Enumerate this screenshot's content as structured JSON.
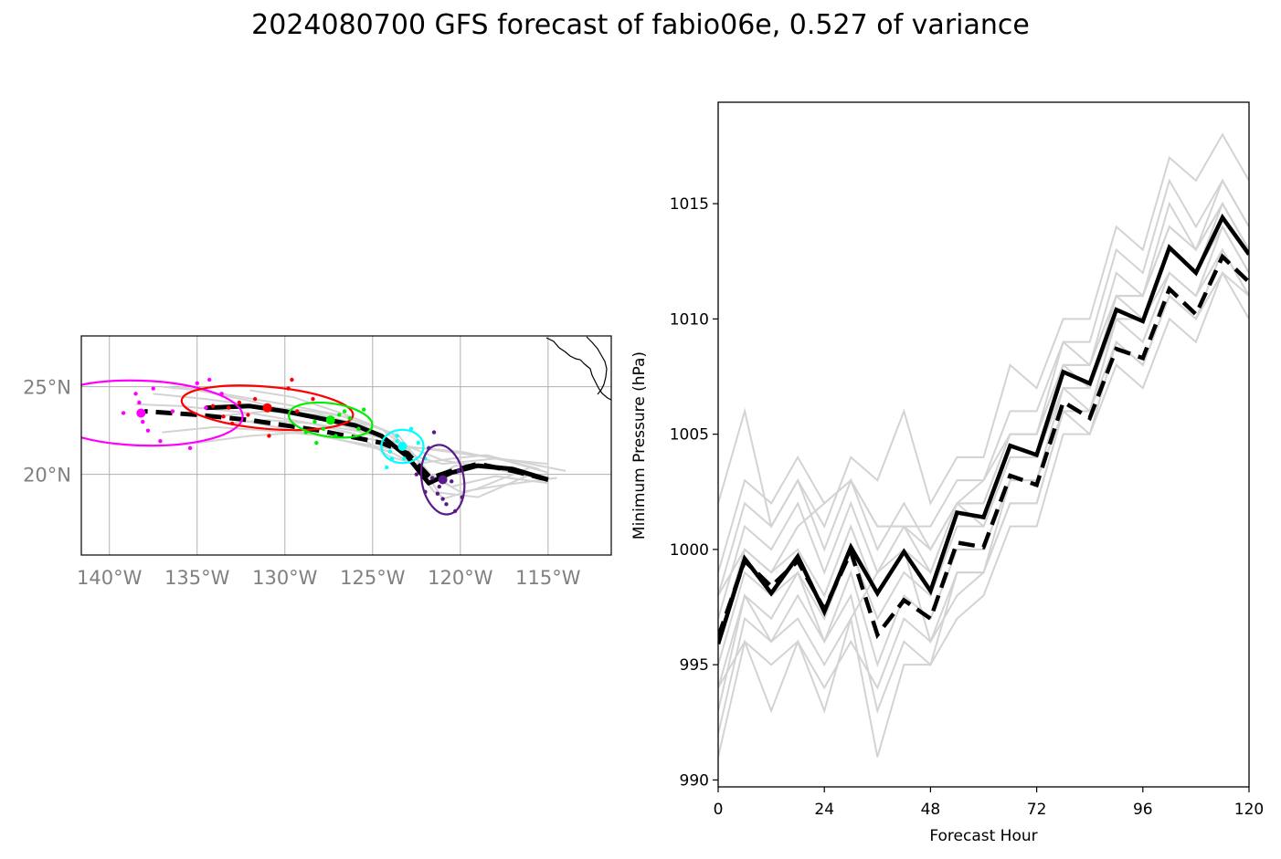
{
  "title": "2024080700 GFS forecast of fabio06e, 0.527 of variance",
  "colors": {
    "ensemble": "#d3d3d3",
    "mean": "#000000",
    "grid": "#b0b0b0",
    "tick_text": "#808080",
    "cluster": [
      "#ff00ff",
      "#ff0000",
      "#00ee00",
      "#00ffff",
      "#5b1a8c"
    ]
  },
  "chart_data": [
    {
      "type": "map-track",
      "x_ticks": [
        {
          "value": -140,
          "label": "140°W"
        },
        {
          "value": -135,
          "label": "135°W"
        },
        {
          "value": -130,
          "label": "130°W"
        },
        {
          "value": -125,
          "label": "125°W"
        },
        {
          "value": -120,
          "label": "120°W"
        },
        {
          "value": -115,
          "label": "115°W"
        }
      ],
      "y_ticks": [
        {
          "value": 25,
          "label": "25°N"
        },
        {
          "value": 20,
          "label": "20°N"
        }
      ],
      "xlim": [
        -141.6,
        -111.4
      ],
      "ylim": [
        15.4,
        27.9
      ],
      "grid": true,
      "mean_track_solid": [
        [
          -115,
          19.7
        ],
        [
          -117,
          20.3
        ],
        [
          -119,
          20.5
        ],
        [
          -120.5,
          20.1
        ],
        [
          -121.8,
          19.5
        ],
        [
          -123,
          21.0
        ],
        [
          -124.5,
          22.2
        ],
        [
          -126,
          22.8
        ],
        [
          -128,
          23.2
        ],
        [
          -130,
          23.6
        ],
        [
          -132,
          23.9
        ],
        [
          -134.5,
          23.8
        ]
      ],
      "mean_track_dashed": [
        [
          -115,
          19.7
        ],
        [
          -117,
          20.2
        ],
        [
          -119,
          20.6
        ],
        [
          -120.5,
          20.2
        ],
        [
          -121.7,
          19.8
        ],
        [
          -123,
          21.2
        ],
        [
          -124.5,
          21.8
        ],
        [
          -126,
          22.1
        ],
        [
          -128,
          22.5
        ],
        [
          -130,
          22.8
        ],
        [
          -132,
          23.1
        ],
        [
          -135,
          23.4
        ],
        [
          -138,
          23.6
        ]
      ],
      "ensemble_tracks": [
        [
          [
            -114,
            20.2
          ],
          [
            -117,
            20.8
          ],
          [
            -120,
            21.2
          ],
          [
            -123,
            21.6
          ],
          [
            -126,
            22.6
          ],
          [
            -129,
            23.4
          ],
          [
            -132,
            24.2
          ],
          [
            -135,
            24.8
          ],
          [
            -137,
            25.0
          ]
        ],
        [
          [
            -115,
            19.5
          ],
          [
            -118,
            19.9
          ],
          [
            -120.5,
            19.3
          ],
          [
            -122,
            20.2
          ],
          [
            -124,
            21.3
          ],
          [
            -127,
            22.0
          ],
          [
            -130,
            22.6
          ],
          [
            -133,
            23.2
          ]
        ],
        [
          [
            -115,
            19.7
          ],
          [
            -118.5,
            20.4
          ],
          [
            -121,
            20.8
          ],
          [
            -123.5,
            21.8
          ],
          [
            -126,
            22.5
          ],
          [
            -129,
            23.0
          ],
          [
            -132,
            23.5
          ],
          [
            -136,
            23.9
          ],
          [
            -138.5,
            24.0
          ]
        ],
        [
          [
            -116,
            20.0
          ],
          [
            -119,
            18.7
          ],
          [
            -121.5,
            19.0
          ],
          [
            -123.3,
            21.4
          ],
          [
            -125.5,
            22.8
          ],
          [
            -128,
            23.4
          ],
          [
            -131,
            23.6
          ],
          [
            -134,
            23.3
          ]
        ],
        [
          [
            -115,
            20.6
          ],
          [
            -118,
            20.9
          ],
          [
            -121,
            20.6
          ],
          [
            -122.5,
            21.0
          ],
          [
            -124.5,
            22.6
          ],
          [
            -126.5,
            23.4
          ],
          [
            -129.5,
            24.4
          ],
          [
            -132,
            24.8
          ]
        ],
        [
          [
            -115,
            19.8
          ],
          [
            -118,
            20.3
          ],
          [
            -120.3,
            20.5
          ],
          [
            -121.5,
            19.8
          ],
          [
            -123,
            21.5
          ],
          [
            -125,
            22.0
          ],
          [
            -127.8,
            22.2
          ],
          [
            -131,
            22.5
          ],
          [
            -134,
            22.7
          ],
          [
            -137,
            22.4
          ]
        ],
        [
          [
            -116,
            20.4
          ],
          [
            -119,
            19.2
          ],
          [
            -121,
            18.6
          ],
          [
            -122.7,
            21.2
          ],
          [
            -124,
            22.4
          ],
          [
            -127,
            23.4
          ],
          [
            -130,
            24.0
          ],
          [
            -133,
            24.5
          ],
          [
            -136,
            25.0
          ]
        ],
        [
          [
            -115,
            20.1
          ],
          [
            -117.5,
            20.8
          ],
          [
            -120,
            21.3
          ],
          [
            -122.2,
            21.5
          ],
          [
            -124.2,
            21.5
          ],
          [
            -126.5,
            21.9
          ],
          [
            -129,
            22.4
          ],
          [
            -132,
            22.2
          ],
          [
            -135,
            21.8
          ]
        ],
        [
          [
            -114.5,
            19.8
          ],
          [
            -117.5,
            19.4
          ],
          [
            -120,
            19.0
          ],
          [
            -121.8,
            20.0
          ],
          [
            -123.5,
            22.2
          ],
          [
            -126,
            23.2
          ],
          [
            -128.5,
            23.6
          ],
          [
            -131.5,
            23.9
          ],
          [
            -134.5,
            24.3
          ],
          [
            -137.5,
            24.6
          ]
        ],
        [
          [
            -115.5,
            20.3
          ],
          [
            -118.5,
            21.1
          ],
          [
            -120.5,
            20.9
          ],
          [
            -122.5,
            20.6
          ],
          [
            -124,
            21.0
          ],
          [
            -126,
            22.3
          ],
          [
            -128.5,
            22.9
          ],
          [
            -131,
            23.1
          ],
          [
            -133.5,
            22.9
          ]
        ]
      ],
      "clusters": [
        {
          "center": [
            -138.2,
            23.5
          ],
          "rx_deg": 5.8,
          "ry_deg": 1.85,
          "angle": 2,
          "points": [
            [
              -138.5,
              24.6
            ],
            [
              -138.3,
              24.1
            ],
            [
              -139.2,
              23.5
            ],
            [
              -137.5,
              24.9
            ],
            [
              -137.8,
              22.5
            ],
            [
              -136.4,
              23.6
            ],
            [
              -137.1,
              21.9
            ],
            [
              -135.4,
              21.5
            ],
            [
              -135,
              25.2
            ],
            [
              -134.3,
              25.4
            ],
            [
              -133.6,
              24.6
            ],
            [
              -134.5,
              23.8
            ],
            [
              -138.1,
              23.0
            ]
          ]
        },
        {
          "center": [
            -131,
            23.8
          ],
          "rx_deg": 4.9,
          "ry_deg": 1.2,
          "angle": 5,
          "points": [
            [
              -133.5,
              23.3
            ],
            [
              -133.2,
              23.8
            ],
            [
              -132.6,
              24.1
            ],
            [
              -131.7,
              24.3
            ],
            [
              -129.8,
              24.9
            ],
            [
              -129.6,
              25.4
            ],
            [
              -130.9,
              22.2
            ],
            [
              -129.3,
              23.6
            ],
            [
              -128.4,
              24.3
            ],
            [
              -132.1,
              23.4
            ],
            [
              -133.0,
              22.9
            ],
            [
              -134.1,
              23.9
            ]
          ]
        },
        {
          "center": [
            -127.4,
            23.1
          ],
          "rx_deg": 2.4,
          "ry_deg": 0.95,
          "angle": 8,
          "points": [
            [
              -128.8,
              22.4
            ],
            [
              -127.8,
              22.6
            ],
            [
              -128.2,
              21.8
            ],
            [
              -125.5,
              23.7
            ],
            [
              -126.3,
              23.2
            ],
            [
              -127.1,
              22.2
            ],
            [
              -126.9,
              23.4
            ],
            [
              -125.8,
              22.6
            ],
            [
              -128.3,
              23.0
            ],
            [
              -126.6,
              23.6
            ]
          ]
        },
        {
          "center": [
            -123.3,
            21.6
          ],
          "rx_deg": 1.2,
          "ry_deg": 0.95,
          "angle": 0,
          "points": [
            [
              -122.8,
              22.6
            ],
            [
              -123.6,
              21.9
            ],
            [
              -124.0,
              21.3
            ],
            [
              -123.2,
              20.9
            ],
            [
              -122.4,
              21.8
            ],
            [
              -124.2,
              20.4
            ],
            [
              -123.6,
              22.2
            ],
            [
              -122.0,
              20.9
            ],
            [
              -123.9,
              20.9
            ]
          ]
        },
        {
          "center": [
            -121,
            19.7
          ],
          "rx_deg": 1.2,
          "ry_deg": 2.0,
          "angle": -10,
          "points": [
            [
              -121.5,
              22.4
            ],
            [
              -121.8,
              21.5
            ],
            [
              -122.5,
              20.0
            ],
            [
              -121.2,
              19.3
            ],
            [
              -120.5,
              19.6
            ],
            [
              -121.0,
              18.6
            ],
            [
              -120.3,
              17.9
            ],
            [
              -120.8,
              18.3
            ],
            [
              -119.9,
              18.7
            ],
            [
              -121.6,
              19.8
            ],
            [
              -122.0,
              19.0
            ],
            [
              -120.1,
              20.2
            ],
            [
              -121.3,
              18.9
            ]
          ]
        }
      ]
    },
    {
      "type": "line",
      "title": "",
      "xlabel": "Forecast Hour",
      "ylabel": "Minimum Pressure (hPa)",
      "xlim": [
        0,
        120
      ],
      "ylim": [
        989.7,
        1019.4
      ],
      "x_ticks": [
        0,
        24,
        48,
        72,
        96,
        120
      ],
      "y_ticks": [
        990,
        995,
        1000,
        1005,
        1010,
        1015
      ],
      "x": [
        0,
        6,
        12,
        18,
        24,
        30,
        36,
        42,
        48,
        54,
        60,
        66,
        72,
        78,
        84,
        90,
        96,
        102,
        108,
        114,
        120
      ],
      "mean_solid": [
        995.9,
        999.6,
        998.1,
        999.7,
        997.3,
        1000.1,
        998.1,
        999.9,
        998.2,
        1001.6,
        1001.4,
        1004.5,
        1004.1,
        1007.7,
        1007.2,
        1010.4,
        1009.9,
        1013.1,
        1012.0,
        1014.4,
        1012.8
      ],
      "mean_dashed": [
        996.2,
        999.5,
        998.4,
        999.5,
        997.4,
        999.9,
        996.3,
        997.8,
        997.0,
        1000.3,
        1000.1,
        1003.2,
        1002.8,
        1006.4,
        1005.7,
        1008.7,
        1008.3,
        1011.3,
        1010.2,
        1012.7,
        1011.6
      ],
      "ensemble": [
        [
          1002,
          1006,
          1001,
          1003,
          1001,
          1004,
          1003,
          1006,
          1002,
          1004,
          1004,
          1008,
          1007,
          1010,
          1010,
          1014,
          1013,
          1017,
          1016,
          1018,
          1016
        ],
        [
          999,
          1003,
          1002,
          1004,
          1002,
          1003,
          1001,
          1001,
          1001,
          1003,
          1003,
          1006,
          1006,
          1009,
          1009,
          1013,
          1012,
          1016,
          1014,
          1016,
          1014
        ],
        [
          998,
          1002,
          1001,
          1003,
          1000,
          1003,
          1000,
          1002,
          1000,
          1002,
          1003,
          1005,
          1005,
          1009,
          1008,
          1012,
          1011,
          1015,
          1013,
          1016,
          1014
        ],
        [
          997,
          1001,
          1000,
          1002,
          999,
          1002,
          999,
          1001,
          1000,
          1002,
          1002,
          1005,
          1005,
          1008,
          1008,
          1011,
          1011,
          1014,
          1013,
          1015,
          1013
        ],
        [
          996,
          1000,
          999,
          1000,
          998,
          1001,
          998,
          1000,
          999,
          1002,
          1001,
          1004,
          1004,
          1008,
          1007,
          1011,
          1010,
          1013,
          1012,
          1015,
          1013
        ],
        [
          995,
          999,
          998,
          999,
          997,
          1000,
          997,
          999,
          998,
          1001,
          1001,
          1004,
          1004,
          1007,
          1007,
          1010,
          1010,
          1013,
          1012,
          1014,
          1012
        ],
        [
          994,
          998,
          997,
          999,
          996,
          999,
          995,
          998,
          997,
          1000,
          1000,
          1003,
          1003,
          1007,
          1006,
          1010,
          1009,
          1012,
          1011,
          1014,
          1012
        ],
        [
          993,
          998,
          996,
          998,
          996,
          998,
          993,
          996,
          995,
          999,
          999,
          1002,
          1002,
          1006,
          1005,
          1009,
          1008,
          1011,
          1010,
          1013,
          1011
        ],
        [
          992,
          997,
          996,
          997,
          995,
          997,
          991,
          995,
          995,
          997,
          998,
          1001,
          1001,
          1005,
          1005,
          1008,
          1007,
          1010,
          1009,
          1012,
          1010
        ],
        [
          991,
          996,
          995,
          996,
          994,
          996,
          994,
          997,
          996,
          999,
          999,
          1002,
          1002,
          1006,
          1006,
          1009,
          1008,
          1011,
          1010,
          1012,
          1011
        ],
        [
          994,
          996,
          993,
          996,
          993,
          997,
          999,
          1000,
          996,
          998,
          999,
          1003,
          1003,
          1006,
          1006,
          1010,
          1010,
          1012,
          1011,
          1013,
          1011
        ],
        [
          998,
          1000,
          999,
          1001,
          1002,
          1003,
          1001,
          1001,
          999,
          1002,
          1002,
          1005,
          1005,
          1008,
          1008,
          1011,
          1011,
          1014,
          1013,
          1015,
          1013
        ]
      ]
    }
  ]
}
